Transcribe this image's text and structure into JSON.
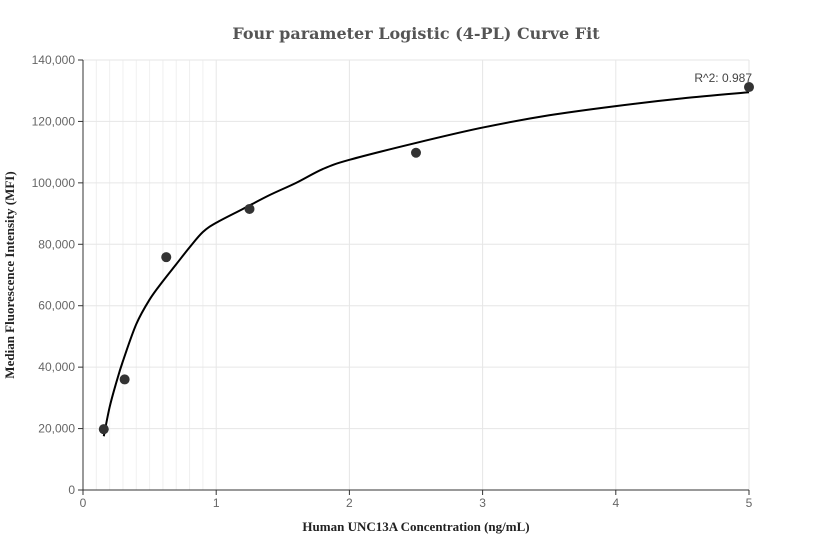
{
  "chart_data": {
    "type": "scatter",
    "title": "Four parameter Logistic (4-PL) Curve Fit",
    "xlabel": "Human UNC13A Concentration (ng/mL)",
    "ylabel": "Median Fluorescence Intensity (MFI)",
    "xlim": [
      0,
      5
    ],
    "ylim": [
      0,
      140000
    ],
    "x_ticks": [
      "0",
      "1",
      "2",
      "3",
      "4",
      "5"
    ],
    "y_ticks": [
      "0",
      "20,000",
      "40,000",
      "60,000",
      "80,000",
      "100,000",
      "120,000",
      "140,000"
    ],
    "grid": true,
    "annotation": "R^2: 0.987",
    "series": [
      {
        "kind": "points",
        "x": [
          0.156,
          0.3125,
          0.625,
          1.25,
          2.5,
          5.0
        ],
        "y": [
          19800,
          36000,
          75800,
          91500,
          109800,
          131200
        ]
      },
      {
        "kind": "fit-curve",
        "x": [
          0.156,
          0.2,
          0.25,
          0.3,
          0.4,
          0.5,
          0.6,
          0.7,
          0.8,
          0.9,
          1.0,
          1.2,
          1.4,
          1.6,
          1.8,
          2.0,
          2.5,
          3.0,
          3.5,
          4.0,
          4.5,
          5.0
        ],
        "y": [
          17500,
          27000,
          35000,
          42000,
          54000,
          62000,
          68000,
          73500,
          79000,
          84000,
          87000,
          91500,
          96000,
          100000,
          104500,
          107500,
          113000,
          118000,
          122000,
          125000,
          127500,
          129500
        ]
      }
    ],
    "colors": {
      "points": "#333333",
      "curve": "#000000"
    }
  }
}
